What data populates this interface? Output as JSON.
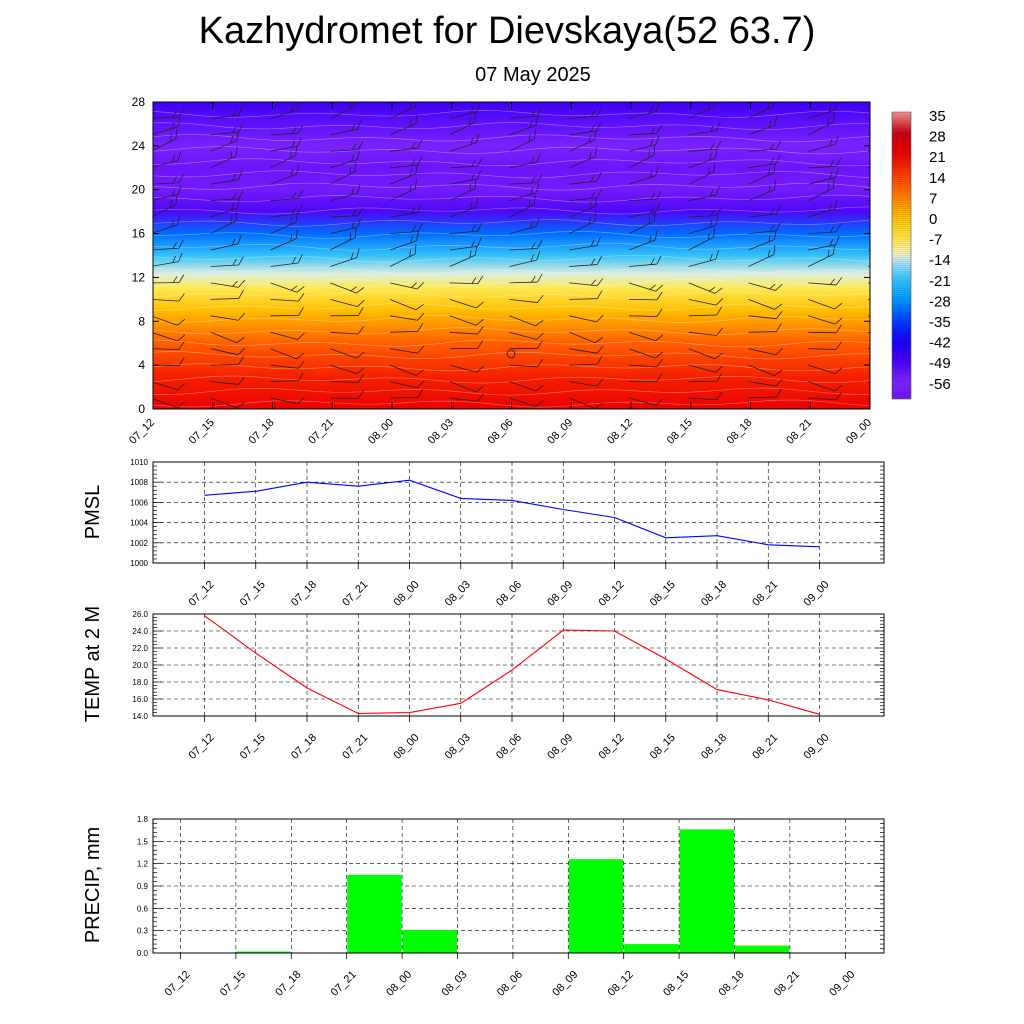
{
  "title": "Kazhydromet for Dievskaya(52 63.7)",
  "subtitle": "07 May 2025",
  "time_labels": [
    "07_12",
    "07_15",
    "07_18",
    "07_21",
    "08_00",
    "08_03",
    "08_06",
    "08_09",
    "08_12",
    "08_15",
    "08_18",
    "08_21",
    "09_00"
  ],
  "colors": {
    "pmsl_line": "#0000ff",
    "temp_line": "#ff0000",
    "precip_bar": "#00ff00",
    "grid": "#000000"
  },
  "chart_data": [
    {
      "type": "heatmap",
      "name": "vertical-cross-section",
      "xlabel": "",
      "ylabel": "",
      "x": [
        "07_12",
        "07_15",
        "07_18",
        "07_21",
        "08_00",
        "08_03",
        "08_06",
        "08_09",
        "08_12",
        "08_15",
        "08_18",
        "08_21",
        "09_00"
      ],
      "yticks": [
        0,
        4,
        8,
        12,
        16,
        20,
        24,
        28
      ],
      "ylim": [
        0,
        28
      ],
      "profile": [
        {
          "level": 0,
          "value": 21
        },
        {
          "level": 3,
          "value": 17
        },
        {
          "level": 6,
          "value": 10
        },
        {
          "level": 9,
          "value": 0
        },
        {
          "level": 11,
          "value": -8
        },
        {
          "level": 12.3,
          "value": -14
        },
        {
          "level": 14,
          "value": -22
        },
        {
          "level": 16,
          "value": -32
        },
        {
          "level": 18,
          "value": -50
        },
        {
          "level": 20,
          "value": -60
        },
        {
          "level": 22,
          "value": -62
        },
        {
          "level": 24,
          "value": -58
        },
        {
          "level": 26,
          "value": -52
        },
        {
          "level": 28,
          "value": -48
        }
      ],
      "colorbar_labels": [
        "35",
        "28",
        "21",
        "14",
        "7",
        "0",
        "-7",
        "-14",
        "-21",
        "-28",
        "-35",
        "-42",
        "-49",
        "-56"
      ],
      "wind_barbs": true,
      "grid": false
    },
    {
      "type": "line",
      "name": "pmsl",
      "ylabel": "PMSL",
      "xlabel": "",
      "x": [
        "07_12",
        "07_15",
        "07_18",
        "07_21",
        "08_00",
        "08_03",
        "08_06",
        "08_09",
        "08_12",
        "08_15",
        "08_18",
        "08_21",
        "09_00"
      ],
      "series": [
        {
          "values": [
            1006.7,
            1007.1,
            1008.0,
            1007.6,
            1008.2,
            1006.4,
            1006.2,
            1005.3,
            1004.5,
            1002.5,
            1002.7,
            1001.8,
            1001.6
          ]
        }
      ],
      "yticks": [
        "1000",
        "1002",
        "1004",
        "1006",
        "1008",
        "1010"
      ],
      "ylim": [
        1000,
        1010
      ],
      "grid": true
    },
    {
      "type": "line",
      "name": "temp-2m",
      "ylabel": "TEMP at 2 M",
      "xlabel": "",
      "x": [
        "07_12",
        "07_15",
        "07_18",
        "07_21",
        "08_00",
        "08_03",
        "08_06",
        "08_09",
        "08_12",
        "08_15",
        "08_18",
        "08_21",
        "09_00"
      ],
      "series": [
        {
          "values": [
            25.8,
            21.4,
            17.3,
            14.3,
            14.4,
            15.5,
            19.4,
            24.1,
            24.0,
            20.7,
            17.1,
            15.9,
            14.2
          ]
        }
      ],
      "yticks": [
        "14.0",
        "16.0",
        "18.0",
        "20.0",
        "22.0",
        "24.0",
        "26.0"
      ],
      "ylim": [
        14,
        26
      ],
      "grid": true
    },
    {
      "type": "bar",
      "name": "precip",
      "ylabel": "PRECIP, mm",
      "xlabel": "",
      "categories": [
        "07_12",
        "07_15",
        "07_18",
        "07_21",
        "08_00",
        "08_03",
        "08_06",
        "08_09",
        "08_12",
        "08_15",
        "08_18",
        "08_21",
        "09_00"
      ],
      "values": [
        0,
        0,
        0.02,
        0,
        1.05,
        0.31,
        0,
        0,
        1.26,
        0.12,
        1.66,
        0.1,
        0
      ],
      "yticks": [
        "0.0",
        "0.3",
        "0.6",
        "0.9",
        "1.2",
        "1.5",
        "1.8"
      ],
      "ylim": [
        0,
        1.8
      ],
      "grid": true
    }
  ]
}
